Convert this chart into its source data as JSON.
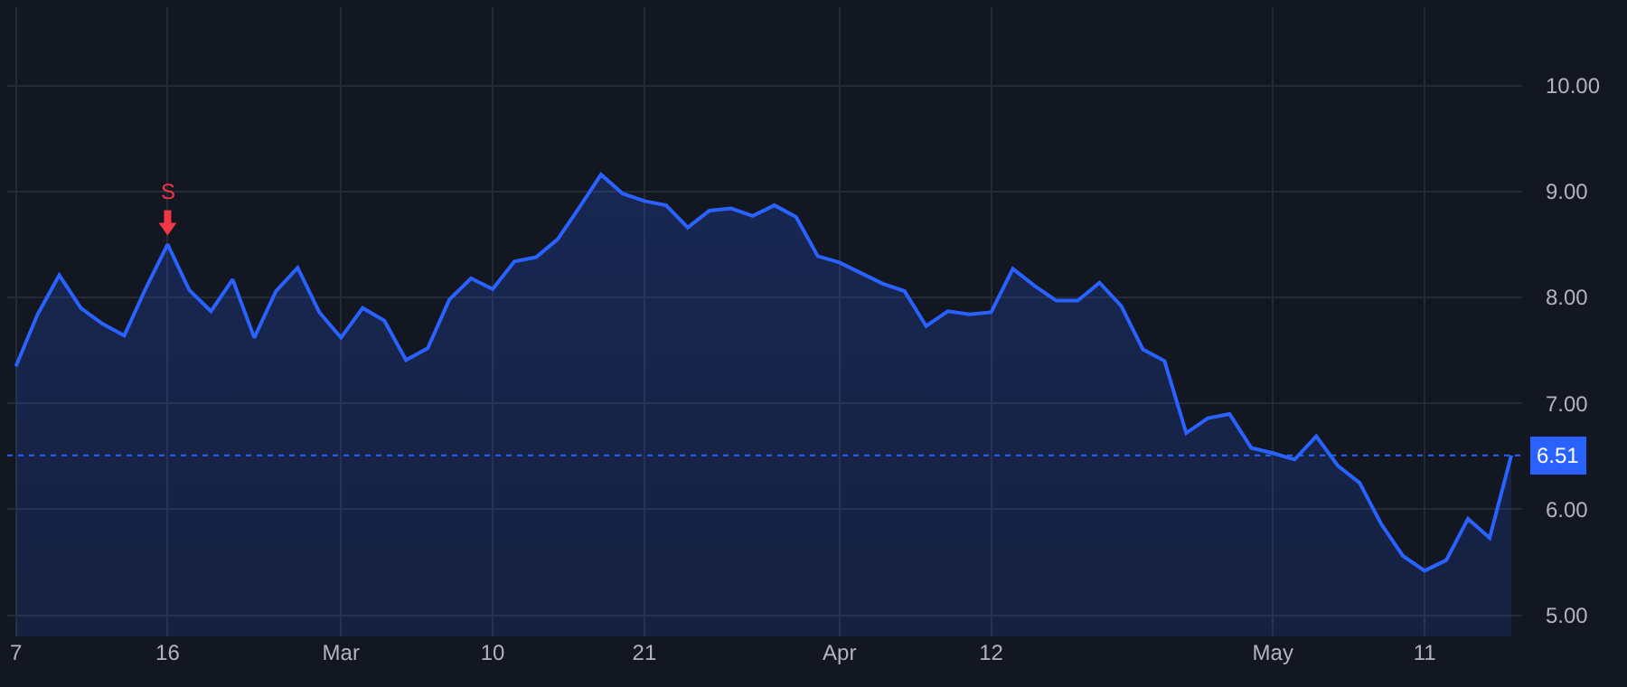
{
  "chart_data": {
    "type": "area",
    "categories": [
      "7",
      null,
      null,
      null,
      null,
      null,
      null,
      "16",
      null,
      null,
      null,
      null,
      null,
      null,
      null,
      "Mar",
      null,
      null,
      null,
      null,
      null,
      null,
      "10",
      null,
      null,
      null,
      null,
      null,
      null,
      "21",
      null,
      null,
      null,
      null,
      null,
      null,
      null,
      null,
      "Apr",
      null,
      null,
      null,
      null,
      null,
      null,
      "12",
      null,
      null,
      null,
      null,
      null,
      null,
      null,
      null,
      null,
      null,
      null,
      null,
      "May",
      null,
      null,
      null,
      null,
      null,
      null,
      "11",
      null,
      null,
      null,
      null
    ],
    "series": [
      {
        "color": "#2962ff",
        "values": [
          7.35,
          7.84,
          8.21,
          7.9,
          7.75,
          7.64,
          8.09,
          8.5,
          8.07,
          7.87,
          8.17,
          7.62,
          8.06,
          8.28,
          7.86,
          7.62,
          7.9,
          7.78,
          7.41,
          7.52,
          7.98,
          8.18,
          8.08,
          8.34,
          8.38,
          8.55,
          8.85,
          9.16,
          8.98,
          8.91,
          8.87,
          8.66,
          8.82,
          8.84,
          8.77,
          8.87,
          8.76,
          8.39,
          8.33,
          8.23,
          8.13,
          8.06,
          7.73,
          7.87,
          7.84,
          7.86,
          8.27,
          8.11,
          7.97,
          7.97,
          8.14,
          7.92,
          7.51,
          7.4,
          6.72,
          6.86,
          6.9,
          6.58,
          6.53,
          6.47,
          6.69,
          6.41,
          6.25,
          5.86,
          5.56,
          5.42,
          5.52,
          5.91,
          5.73,
          6.51
        ]
      }
    ],
    "ylim": [
      4.8,
      10.74
    ],
    "yticks": [
      {
        "value": 5,
        "label": "5.00"
      },
      {
        "value": 6,
        "label": "6.00"
      },
      {
        "value": 7,
        "label": "7.00"
      },
      {
        "value": 8,
        "label": "8.00"
      },
      {
        "value": 9,
        "label": "9.00"
      },
      {
        "value": 10,
        "label": "10.00"
      }
    ],
    "grid": true,
    "ref_lines": [
      {
        "axis": "y",
        "value": 6.51,
        "label": "6.51",
        "color": "#2962ff",
        "line_style": "dotted"
      }
    ],
    "annotations": [
      {
        "text": "S",
        "x": "16",
        "y": 8.5
      }
    ]
  }
}
